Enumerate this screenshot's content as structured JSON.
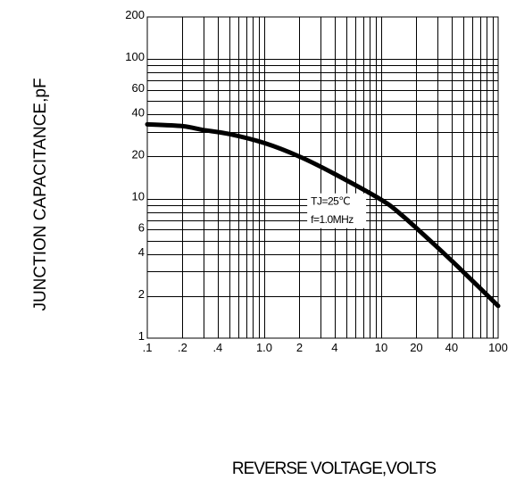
{
  "chart_data": {
    "type": "line",
    "title": "",
    "xlabel": "REVERSE VOLTAGE,VOLTS",
    "ylabel": "JUNCTION CAPACITANCE,pF",
    "xscale": "log",
    "yscale": "log",
    "xlim": [
      0.1,
      100
    ],
    "ylim": [
      1,
      200
    ],
    "grid": true,
    "x_tick_values": [
      0.1,
      0.2,
      0.4,
      1,
      2,
      4,
      10,
      20,
      40,
      100
    ],
    "x_tick_labels": [
      ".1",
      ".2",
      ".4",
      "1.0",
      "2",
      "4",
      "10",
      "20",
      "40",
      "100"
    ],
    "y_tick_values": [
      1,
      2,
      4,
      6,
      10,
      20,
      40,
      60,
      100,
      200
    ],
    "y_tick_labels": [
      "1",
      "2",
      "4",
      "6",
      "10",
      "20",
      "40",
      "60",
      "100",
      "200"
    ],
    "series": [
      {
        "x": [
          0.1,
          0.2,
          0.3,
          0.5,
          1.0,
          2.0,
          4.0,
          10,
          15,
          30,
          50,
          100
        ],
        "y": [
          34,
          33,
          31,
          29,
          25,
          20,
          15,
          9.8,
          7.6,
          4.5,
          3.0,
          1.7
        ]
      }
    ],
    "annotations": [
      {
        "text": "TJ=25℃",
        "x": 2.5,
        "y": 9
      },
      {
        "text": "f=1.0MHz",
        "x": 2.5,
        "y": 6.7
      }
    ]
  }
}
